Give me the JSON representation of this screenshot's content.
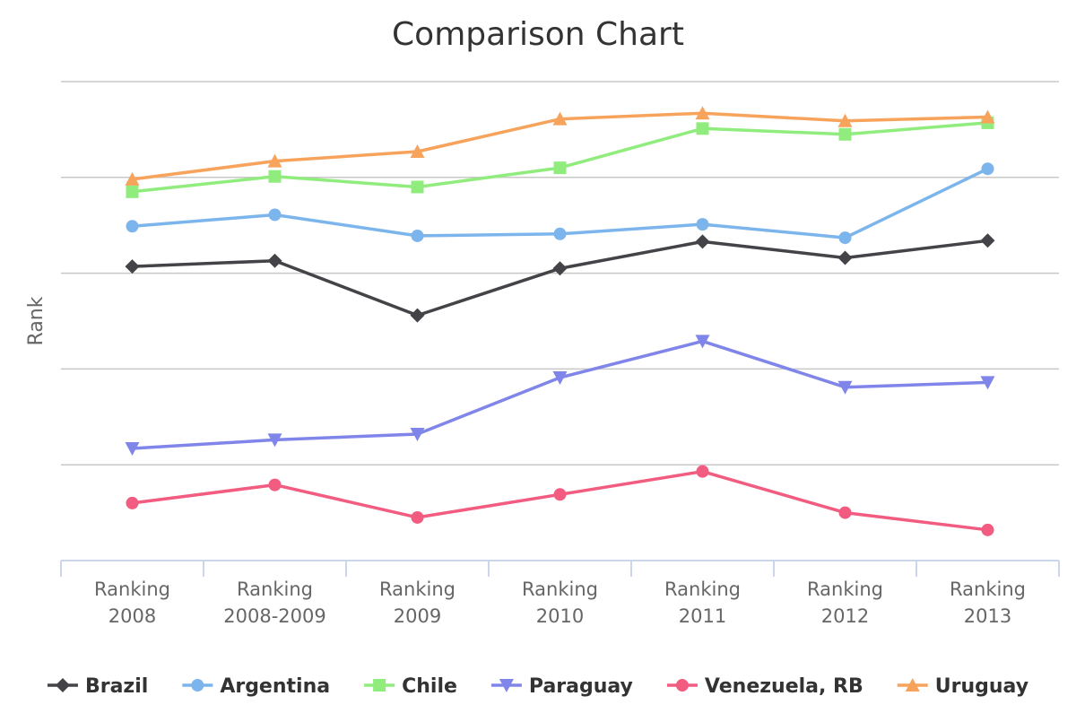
{
  "chart_data": {
    "type": "line",
    "title": "Comparison Chart",
    "xlabel": "",
    "ylabel": "Rank",
    "categories": [
      "Ranking 2008",
      "Ranking 2008-2009",
      "Ranking 2009",
      "Ranking 2010",
      "Ranking 2011",
      "Ranking 2012",
      "Ranking 2013"
    ],
    "category_lines": [
      [
        "Ranking",
        "2008"
      ],
      [
        "Ranking",
        "2008-2009"
      ],
      [
        "Ranking",
        "2009"
      ],
      [
        "Ranking",
        "2010"
      ],
      [
        "Ranking",
        "2011"
      ],
      [
        "Ranking",
        "2012"
      ],
      [
        "Ranking",
        "2013"
      ]
    ],
    "ylim": [
      0,
      5
    ],
    "y_gridlines": [
      0,
      1,
      2,
      3,
      4,
      5
    ],
    "y_tick_labels_shown": false,
    "grid": true,
    "legend_position": "bottom",
    "series": [
      {
        "name": "Brazil",
        "color": "#434348",
        "marker": "diamond",
        "values": [
          3.07,
          3.13,
          2.56,
          3.05,
          3.33,
          3.16,
          3.34
        ]
      },
      {
        "name": "Argentina",
        "color": "#7cb5ec",
        "marker": "circle",
        "values": [
          3.49,
          3.61,
          3.39,
          3.41,
          3.51,
          3.37,
          4.09
        ]
      },
      {
        "name": "Chile",
        "color": "#90ed7d",
        "marker": "square",
        "values": [
          3.85,
          4.01,
          3.9,
          4.1,
          4.51,
          4.45,
          4.57
        ]
      },
      {
        "name": "Paraguay",
        "color": "#8085e9",
        "marker": "triangle-down",
        "values": [
          1.17,
          1.26,
          1.32,
          1.91,
          2.29,
          1.81,
          1.86
        ]
      },
      {
        "name": "Venezuela, RB",
        "color": "#f15c80",
        "marker": "circle",
        "values": [
          0.6,
          0.79,
          0.45,
          0.69,
          0.93,
          0.5,
          0.32
        ]
      },
      {
        "name": "Uruguay",
        "color": "#f7a35c",
        "marker": "triangle",
        "values": [
          3.98,
          4.17,
          4.27,
          4.61,
          4.67,
          4.59,
          4.63
        ]
      }
    ]
  }
}
